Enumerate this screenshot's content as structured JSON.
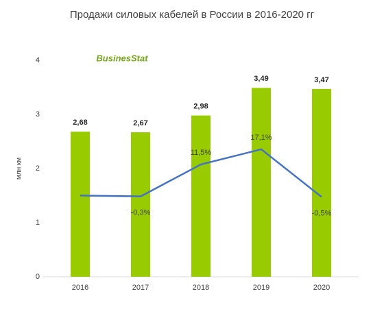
{
  "chart_data": {
    "type": "bar",
    "title": "Продажи силовых кабелей в России в 2016-2020 гг",
    "y_label": "млн км",
    "logo": "BusinesStat",
    "categories": [
      "2016",
      "2017",
      "2018",
      "2019",
      "2020"
    ],
    "ylim": [
      0,
      4
    ],
    "yticks": [
      0,
      1,
      2,
      3,
      4
    ],
    "y2lim": [
      -30,
      50
    ],
    "series": [
      {
        "type": "bar",
        "color": "#99cc00",
        "values": [
          2.68,
          2.67,
          2.98,
          3.49,
          3.47
        ],
        "value_labels": [
          "2,68",
          "2,67",
          "2,98",
          "3,49",
          "3,47"
        ]
      },
      {
        "type": "line",
        "axis": "y2",
        "color": "#4472c4",
        "values": [
          0,
          -0.3,
          11.5,
          17.1,
          -0.5
        ],
        "value_labels": [
          null,
          "-0,3%",
          "11,5%",
          "17,1%",
          "-0,5%"
        ]
      }
    ]
  }
}
